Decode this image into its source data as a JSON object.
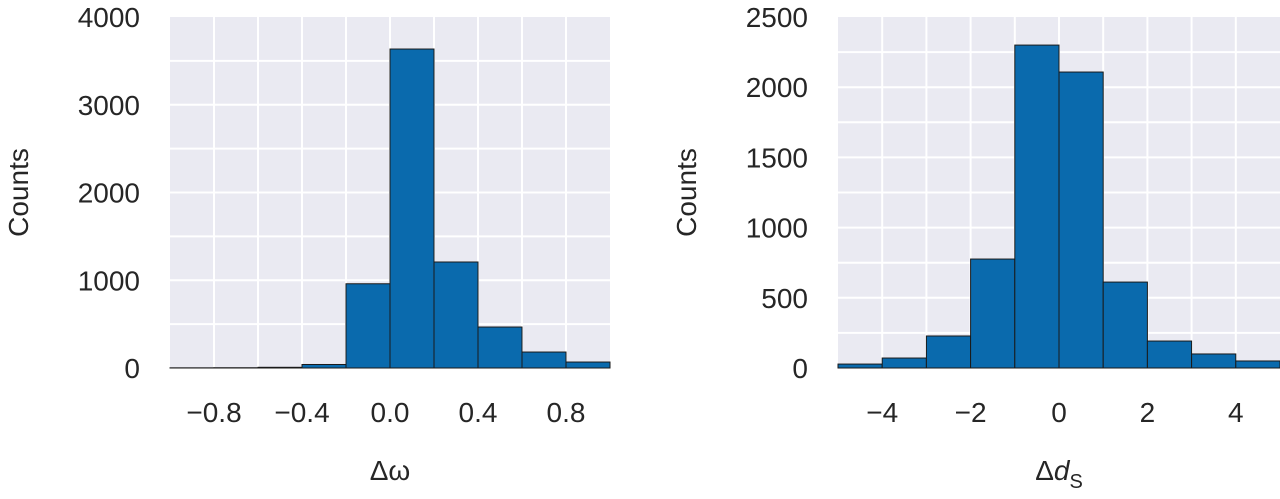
{
  "chart_data": [
    {
      "type": "histogram",
      "ylabel": "Counts",
      "xlabel": {
        "prefix": "Δ",
        "var": "ω"
      },
      "bins": [
        -1.0,
        -0.8,
        -0.6,
        -0.4,
        -0.2,
        0.0,
        0.2,
        0.4,
        0.6,
        0.8,
        1.0
      ],
      "values": [
        2,
        3,
        8,
        40,
        960,
        3635,
        1208,
        467,
        182,
        68
      ],
      "color": "#0a6aad",
      "xlim": [
        -1.0,
        1.0
      ],
      "ylim": [
        0,
        4000
      ],
      "xticks": [
        {
          "value": -0.8,
          "label": "−0.8"
        },
        {
          "value": -0.4,
          "label": "−0.4"
        },
        {
          "value": 0,
          "label": "0.0"
        },
        0.4,
        0.8
      ],
      "yticks": [
        0,
        1000,
        2000,
        3000,
        4000
      ],
      "xgrid": [
        -0.8,
        -0.6,
        -0.4,
        -0.2,
        0,
        0.2,
        0.4,
        0.6,
        0.8
      ],
      "ygrid": [
        500,
        1000,
        1500,
        2000,
        2500,
        3000,
        3500
      ]
    },
    {
      "type": "histogram",
      "ylabel": "Counts",
      "xlabel": {
        "prefix": "Δ",
        "var": "d",
        "sub": "S"
      },
      "bins": [
        -5,
        -4,
        -3,
        -2,
        -1,
        0,
        1,
        2,
        3,
        4,
        5
      ],
      "values": [
        28,
        71,
        228,
        776,
        2300,
        2108,
        612,
        192,
        100,
        50
      ],
      "color": "#0a6aad",
      "xlim": [
        -5,
        5
      ],
      "ylim": [
        0,
        2500
      ],
      "xticks": [
        {
          "value": -4,
          "label": "−4"
        },
        {
          "value": -2,
          "label": "−2"
        },
        0,
        2,
        4
      ],
      "yticks": [
        0,
        500,
        1000,
        1500,
        2000,
        2500
      ],
      "xgrid": [
        -4,
        -3,
        -2,
        -1,
        0,
        1,
        2,
        3,
        4
      ],
      "ygrid": [
        250,
        500,
        750,
        1000,
        1250,
        1500,
        1750,
        2000,
        2250
      ]
    }
  ]
}
